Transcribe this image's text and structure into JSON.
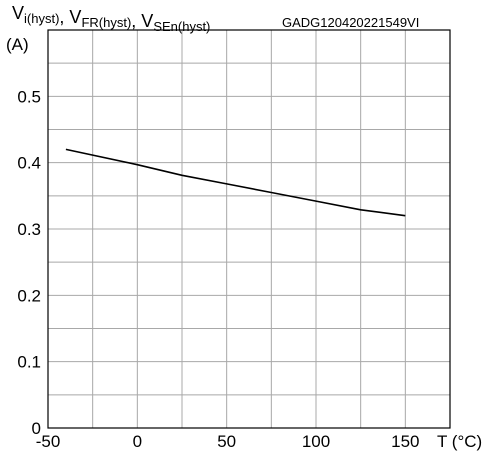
{
  "chart_data": {
    "type": "line",
    "figure_id": "GADG120420221549VI",
    "title_parts": [
      {
        "base": "V",
        "sub": "i(hyst)"
      },
      {
        "base": "V",
        "sub": "FR(hyst)"
      },
      {
        "base": "V",
        "sub": "SEn(hyst)"
      }
    ],
    "title_separator": ", ",
    "ylabel": "(A)",
    "xlabel": "T (°C)",
    "xlim": [
      -50,
      175
    ],
    "ylim": [
      0,
      0.6
    ],
    "x_ticks": [
      -50,
      0,
      50,
      100,
      150
    ],
    "x_tick_labels": [
      "-50",
      "0",
      "50",
      "100",
      "150"
    ],
    "y_ticks": [
      0,
      0.1,
      0.2,
      0.3,
      0.4,
      0.5
    ],
    "y_tick_labels": [
      "0",
      "0.1",
      "0.2",
      "0.3",
      "0.4",
      "0.5"
    ],
    "x_grid_step": 25,
    "y_grid_step": 0.05,
    "grid": true,
    "series": [
      {
        "x": [
          -40,
          0,
          25,
          50,
          75,
          100,
          125,
          150
        ],
        "y": [
          0.42,
          0.397,
          0.381,
          0.368,
          0.355,
          0.342,
          0.329,
          0.32
        ],
        "color": "#000000"
      }
    ],
    "colors": {
      "axis": "#000000",
      "grid": "#a8a8a8",
      "line": "#000000"
    }
  }
}
